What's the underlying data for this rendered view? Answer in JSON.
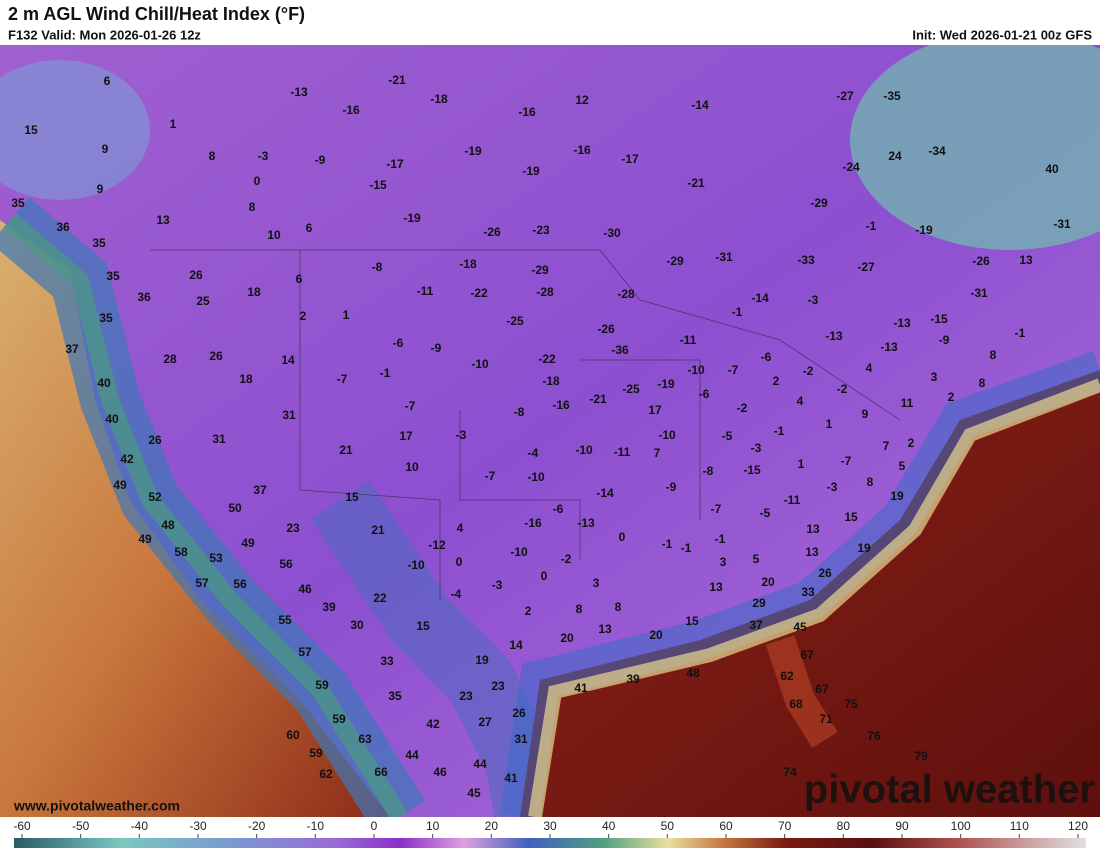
{
  "header": {
    "title": "2 m AGL Wind Chill/Heat Index (°F)",
    "valid": "F132 Valid: Mon 2026-01-26 12z",
    "init": "Init: Wed 2026-01-21 00z GFS"
  },
  "watermark": {
    "logo": "pivotal weather",
    "url": "www.pivotalweather.com"
  },
  "colorbar": {
    "ticks": [
      -60,
      -50,
      -40,
      -30,
      -20,
      -10,
      0,
      10,
      20,
      30,
      40,
      50,
      60,
      70,
      80,
      90,
      100,
      110,
      120
    ]
  },
  "map_labels": [
    6,
    15,
    1,
    9,
    8,
    -3,
    9,
    0,
    8,
    13,
    10,
    6,
    35,
    36,
    35,
    35,
    26,
    36,
    25,
    18,
    6,
    2,
    1,
    35,
    37,
    28,
    26,
    14,
    40,
    18,
    40,
    26,
    31,
    31,
    42,
    49,
    52,
    48,
    49,
    58,
    53,
    49,
    57,
    56,
    56,
    37,
    50,
    23,
    46,
    39,
    55,
    57,
    59,
    59,
    60,
    59,
    63,
    62,
    66,
    44,
    46,
    45,
    44,
    41,
    42,
    35,
    33,
    30,
    22,
    15,
    23,
    19,
    23,
    27,
    26,
    31,
    14,
    20,
    13,
    41,
    39,
    48,
    20,
    15,
    37,
    45,
    67,
    62,
    67,
    68,
    71,
    75,
    76,
    79,
    74,
    8,
    8,
    3,
    2,
    0,
    -3,
    -4,
    0,
    4,
    -10,
    -12,
    21,
    15,
    21,
    10,
    17,
    -3,
    -7,
    -10,
    -4,
    -8,
    -10,
    -16,
    -6,
    -2,
    -13,
    0,
    -14,
    -10,
    -11,
    7,
    -10,
    17,
    -25,
    -21,
    -16,
    -18,
    -22,
    -10,
    -9,
    -6,
    -1,
    -7,
    -7,
    -8,
    -11,
    -18,
    -22,
    -25,
    -29,
    -28,
    -26,
    -28,
    -36,
    -11,
    -19,
    -10,
    -7,
    -6,
    -6,
    -2,
    -5,
    -1,
    -3,
    -15,
    -8,
    -9,
    -7,
    -1,
    -1,
    -1,
    3,
    13,
    5,
    20,
    29,
    13,
    13,
    15,
    19,
    26,
    33,
    -5,
    -11,
    -3,
    8,
    19,
    1,
    -7,
    1,
    9,
    11,
    7,
    2,
    5,
    4,
    2,
    -2,
    -2,
    4,
    3,
    2,
    8,
    -13,
    -13,
    -13,
    -15,
    -9,
    8,
    -1,
    -3,
    -14,
    -1,
    -31,
    -29,
    -33,
    -27,
    -26,
    13,
    -31,
    -31,
    -19,
    -1,
    -29,
    -24,
    24,
    -34,
    40,
    -27,
    -35,
    -21,
    -17,
    -16,
    -19,
    -16,
    12,
    -14,
    -30,
    -23,
    -26,
    -19,
    -15,
    -17,
    -9,
    -19,
    -18,
    -21,
    -13,
    -16
  ]
}
